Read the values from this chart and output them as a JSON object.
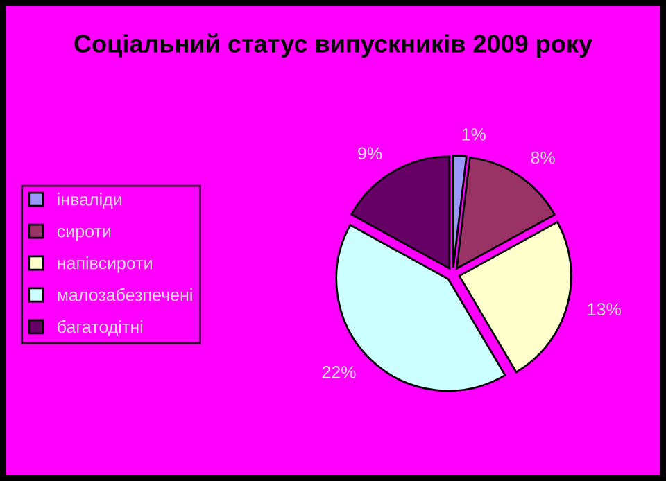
{
  "chart_data": {
    "type": "pie",
    "title": "Соціальний статус випускників 2009 року",
    "categories": [
      "інваліди",
      "сироти",
      "напівсироти",
      "малозабезпечені",
      "багатодітні"
    ],
    "values": [
      1,
      8,
      13,
      22,
      9
    ],
    "colors": [
      "#9999ff",
      "#993366",
      "#ffffcc",
      "#ccffff",
      "#660066"
    ],
    "value_labels": [
      "1%",
      "8%",
      "13%",
      "22%",
      "9%"
    ],
    "legend": "left"
  }
}
